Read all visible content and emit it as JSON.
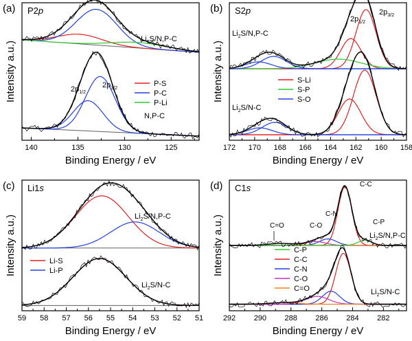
{
  "chart_data": [
    {
      "panel": "(a)",
      "type": "line",
      "element": "P",
      "orbital_num": "2",
      "orbital_sym": "p",
      "xlabel": "Binding Energy / eV",
      "ylabel": "Intensity  a.u.)",
      "xlim": [
        141,
        122
      ],
      "ylim": [
        0,
        1
      ],
      "xticks": [
        "140",
        "135",
        "130",
        "125"
      ],
      "legend": [
        "P-S",
        "P-C",
        "P-Li"
      ],
      "colors": [
        "#e02020",
        "#2040e0",
        "#30c830",
        "#606060"
      ],
      "spectra": [
        {
          "label_main": "Li",
          "label_sub": "2",
          "label_rest": "S/N,P-C",
          "baseline": [
            0.73,
            0.64
          ],
          "components": [
            {
              "name": "P-S",
              "center": 134.8,
              "width": 2.4,
              "height": 0.07
            },
            {
              "name": "P-C",
              "center": 133.0,
              "width": 2.2,
              "height": 0.26
            },
            {
              "name": "P-Li",
              "center": 128.5,
              "width": 3.0,
              "height": 0.04
            }
          ]
        },
        {
          "label_main": "",
          "label_sub": "",
          "label_rest": "N,P-C",
          "baseline": [
            0.09,
            0.03
          ],
          "components": [
            {
              "name": "2p1/2",
              "center": 133.9,
              "width": 1.6,
              "height": 0.22
            },
            {
              "name": "2p3/2",
              "center": 132.6,
              "width": 1.6,
              "height": 0.4
            }
          ]
        }
      ],
      "peak_labels": [
        {
          "main": "2p",
          "sub": "1/2"
        },
        {
          "main": "2p",
          "sub": "3/2"
        }
      ]
    },
    {
      "panel": "(b)",
      "type": "line",
      "element": "S",
      "orbital_num": "2",
      "orbital_sym": "p",
      "xlabel": "Binding Energy / eV",
      "ylabel": "Intensity  a.u.)",
      "xlim": [
        172,
        158
      ],
      "ylim": [
        0,
        1
      ],
      "xticks": [
        "172",
        "170",
        "168",
        "166",
        "164",
        "162",
        "160",
        "158"
      ],
      "legend": [
        "S-Li",
        "S-P",
        "S-O"
      ],
      "colors": [
        "#e02020",
        "#30c830",
        "#2040e0",
        "#606060"
      ],
      "spectra": [
        {
          "label_main": "Li",
          "label_sub": "2",
          "label_rest": "S/N,P-C",
          "baseline": [
            0.52,
            0.52
          ],
          "components": [
            {
              "name": "S-Li 2p3/2",
              "center": 161.2,
              "width": 0.8,
              "height": 0.43
            },
            {
              "name": "S-Li 2p1/2",
              "center": 162.4,
              "width": 0.8,
              "height": 0.22
            },
            {
              "name": "S-P",
              "center": 163.4,
              "width": 1.8,
              "height": 0.07
            },
            {
              "name": "S-O",
              "center": 168.5,
              "width": 1.0,
              "height": 0.09
            },
            {
              "name": "S-O",
              "center": 169.7,
              "width": 1.0,
              "height": 0.05
            }
          ]
        },
        {
          "label_main": "Li",
          "label_sub": "2",
          "label_rest": "S/N-C",
          "baseline": [
            0.04,
            0.04
          ],
          "components": [
            {
              "name": "S-Li 2p3/2",
              "center": 161.3,
              "width": 0.9,
              "height": 0.47
            },
            {
              "name": "S-Li 2p1/2",
              "center": 162.5,
              "width": 0.9,
              "height": 0.26
            },
            {
              "name": "S-O",
              "center": 168.4,
              "width": 1.0,
              "height": 0.09
            },
            {
              "name": "S-O",
              "center": 169.6,
              "width": 1.0,
              "height": 0.05
            }
          ]
        }
      ],
      "peak_labels": [
        {
          "main": "2p",
          "sub": "1/2"
        },
        {
          "main": "2p",
          "sub": "3/2"
        }
      ]
    },
    {
      "panel": "(c)",
      "type": "line",
      "element": "Li",
      "orbital_num": "1",
      "orbital_sym": "s",
      "xlabel": "Binding Energy / eV",
      "ylabel": "Intensity  a.u.)",
      "xlim": [
        59,
        51
      ],
      "ylim": [
        0,
        1
      ],
      "xticks": [
        "59",
        "58",
        "57",
        "56",
        "55",
        "54",
        "53",
        "52",
        "51"
      ],
      "legend": [
        "Li-S",
        "Li-P"
      ],
      "colors": [
        "#e02020",
        "#2040e0",
        "#606060"
      ],
      "spectra": [
        {
          "label_main": "Li",
          "label_sub": "2",
          "label_rest": "S/N,P-C",
          "baseline": [
            0.48,
            0.48
          ],
          "components": [
            {
              "name": "Li-S",
              "center": 55.4,
              "width": 1.2,
              "height": 0.4
            },
            {
              "name": "Li-P",
              "center": 53.9,
              "width": 1.1,
              "height": 0.2
            }
          ]
        },
        {
          "label_main": "Li",
          "label_sub": "2",
          "label_rest": "S/N-C",
          "baseline": [
            0.04,
            0.04
          ],
          "components": [
            {
              "name": "Li-S",
              "center": 55.5,
              "width": 1.2,
              "height": 0.36
            }
          ]
        }
      ]
    },
    {
      "panel": "(d)",
      "type": "line",
      "element": "C",
      "orbital_num": "1",
      "orbital_sym": "s",
      "xlabel": "Binding Energy / eV",
      "ylabel": "Intensity  a.u.)",
      "xlim": [
        292,
        280.5
      ],
      "ylim": [
        0,
        1
      ],
      "xticks": [
        "292",
        "290",
        "288",
        "286",
        "284",
        "282"
      ],
      "legend": [
        "C-P",
        "C-C",
        "C-N",
        "C-O",
        "C=O"
      ],
      "colors": [
        "#30c830",
        "#e02020",
        "#2040e0",
        "#c030c0",
        "#f08020",
        "#606060"
      ],
      "peak_annotations": [
        "C=O",
        "C-O",
        "C-N",
        "C-C",
        "C-P"
      ],
      "spectra": [
        {
          "label_main": "Li",
          "label_sub": "2",
          "label_rest": "S/N,P-C",
          "baseline": [
            0.5,
            0.5
          ],
          "components": [
            {
              "name": "C-C",
              "center": 284.5,
              "width": 0.45,
              "height": 0.45
            },
            {
              "name": "C-N",
              "center": 285.6,
              "width": 0.55,
              "height": 0.05
            },
            {
              "name": "C-O",
              "center": 286.4,
              "width": 0.65,
              "height": 0.03
            },
            {
              "name": "C=O",
              "center": 288.6,
              "width": 0.9,
              "height": 0.015
            },
            {
              "name": "C-P",
              "center": 283.2,
              "width": 0.45,
              "height": 0.04
            }
          ]
        },
        {
          "label_main": "Li",
          "label_sub": "2",
          "label_rest": "S/N-C",
          "baseline": [
            0.05,
            0.05
          ],
          "components": [
            {
              "name": "C-C",
              "center": 284.6,
              "width": 0.5,
              "height": 0.39
            },
            {
              "name": "C-N",
              "center": 285.4,
              "width": 0.55,
              "height": 0.1
            },
            {
              "name": "C-O",
              "center": 286.3,
              "width": 0.75,
              "height": 0.06
            },
            {
              "name": "C=O",
              "center": 288.5,
              "width": 0.9,
              "height": 0.012
            }
          ]
        }
      ]
    }
  ]
}
